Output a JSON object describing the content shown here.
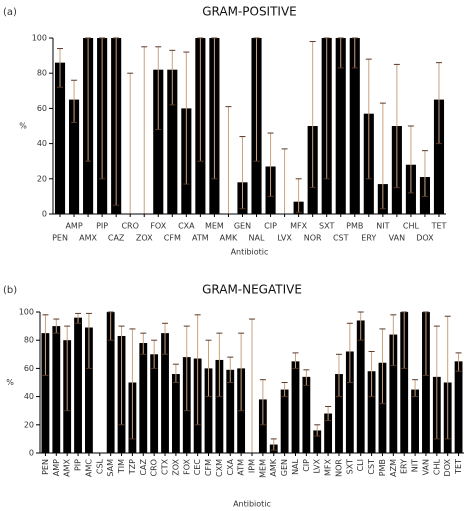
{
  "chart_data": [
    {
      "type": "bar",
      "panel_label": "(a)",
      "title": "GRAM-POSITIVE",
      "ylabel": "%",
      "xlabel": "Antibiotic",
      "color": "#000000",
      "error_color": "#c9a27e",
      "ylim": [
        0,
        100
      ],
      "yticks": [
        0,
        20,
        40,
        60,
        80,
        100
      ],
      "categories": [
        "PEN",
        "AMP",
        "AMX",
        "PIP",
        "CAZ",
        "CRO",
        "ZOX",
        "FOX",
        "CFM",
        "CXA",
        "ATM",
        "MEM",
        "AMK",
        "GEN",
        "NAL",
        "CIP",
        "LVX",
        "MFX",
        "NOR",
        "SXT",
        "CST",
        "PMB",
        "ERY",
        "NIT",
        "VAN",
        "CHL",
        "DOX",
        "TET"
      ],
      "values": [
        86,
        65,
        100,
        100,
        100,
        0,
        0,
        82,
        82,
        60,
        100,
        100,
        0,
        18,
        100,
        27,
        0,
        7,
        50,
        100,
        100,
        100,
        57,
        17,
        50,
        28,
        21,
        65
      ],
      "error_lower": [
        72,
        52,
        30,
        20,
        5,
        0,
        0,
        48,
        62,
        17,
        30,
        20,
        0,
        3,
        30,
        10,
        0,
        1,
        15,
        20,
        83,
        83,
        20,
        3,
        15,
        12,
        10,
        40
      ],
      "error_upper": [
        94,
        76,
        100,
        100,
        100,
        80,
        95,
        95,
        93,
        92,
        100,
        100,
        61,
        44,
        100,
        46,
        37,
        20,
        98,
        100,
        100,
        100,
        88,
        63,
        85,
        50,
        36,
        86
      ]
    },
    {
      "type": "bar",
      "panel_label": "(b)",
      "title": "GRAM-NEGATIVE",
      "ylabel": "%",
      "xlabel": "Antibiotic",
      "color": "#000000",
      "error_color": "#c9a27e",
      "ylim": [
        0,
        100
      ],
      "yticks": [
        0,
        20,
        40,
        60,
        80,
        100
      ],
      "categories": [
        "PEN",
        "AMP",
        "AMX",
        "PIP",
        "AMC",
        "CSL",
        "SAM",
        "TIM",
        "TZP",
        "CAZ",
        "CRO",
        "CTX",
        "ZOX",
        "FOX",
        "CEC",
        "CFM",
        "CXM",
        "CXA",
        "ATM",
        "IPM",
        "MEM",
        "AMK",
        "GEN",
        "NAL",
        "CIP",
        "LVX",
        "MFX",
        "NOR",
        "SXT",
        "CLI",
        "CST",
        "PMB",
        "AZM",
        "ERY",
        "NIT",
        "VAN",
        "CHL",
        "DOX",
        "TET"
      ],
      "values": [
        85,
        90,
        80,
        96,
        89,
        0,
        100,
        83,
        50,
        78,
        70,
        85,
        56,
        68,
        67,
        60,
        66,
        59,
        60,
        0,
        38,
        6,
        45,
        65,
        54,
        16,
        28,
        56,
        72,
        94,
        58,
        64,
        84,
        100,
        45,
        100,
        54,
        50,
        65
      ],
      "error_lower": [
        55,
        85,
        30,
        92,
        60,
        0,
        80,
        20,
        10,
        70,
        60,
        70,
        50,
        30,
        20,
        40,
        40,
        50,
        30,
        0,
        20,
        2,
        40,
        60,
        48,
        12,
        23,
        40,
        50,
        80,
        40,
        35,
        62,
        60,
        40,
        55,
        10,
        10,
        58
      ],
      "error_upper": [
        98,
        95,
        90,
        99,
        99,
        0,
        100,
        90,
        88,
        85,
        80,
        92,
        63,
        90,
        98,
        80,
        85,
        68,
        85,
        95,
        52,
        10,
        50,
        71,
        59,
        20,
        33,
        70,
        92,
        100,
        72,
        88,
        98,
        100,
        52,
        100,
        90,
        97,
        71
      ]
    }
  ]
}
